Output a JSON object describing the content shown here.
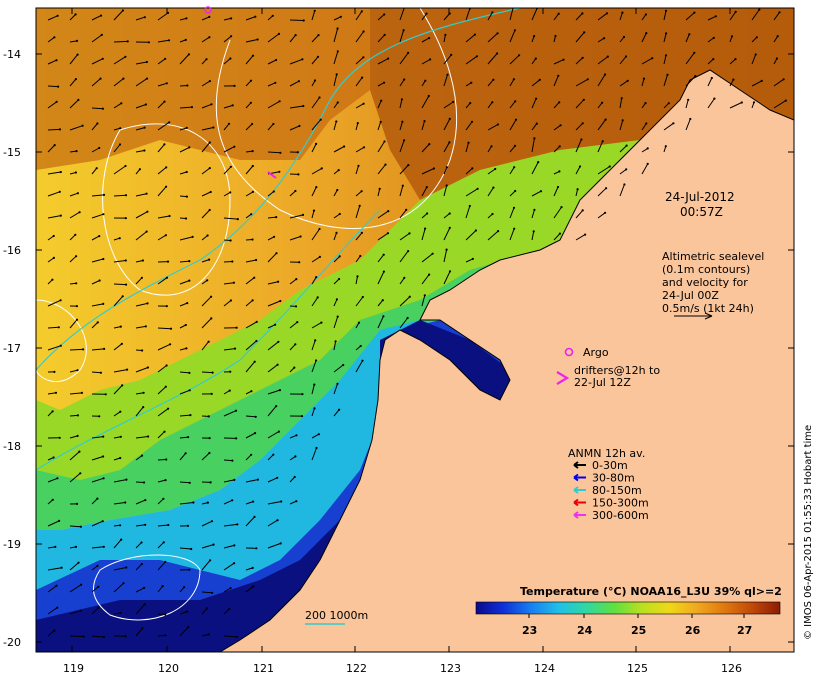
{
  "map": {
    "colors": {
      "land": "#fbc59b",
      "coast": "#000000",
      "contour": "#ffffff",
      "isobath": "#33cccc",
      "frame": "#000000"
    },
    "lon_ticks": [
      "119",
      "120",
      "121",
      "122",
      "123",
      "124",
      "125",
      "126"
    ],
    "lat_ticks": [
      "-14",
      "-15",
      "-16",
      "-17",
      "-18",
      "-19",
      "-20"
    ]
  },
  "annotations": {
    "date": "24-Jul-2012",
    "time": "00:57Z",
    "altimetry": [
      "Altimetric sealevel",
      "(0.1m contours)",
      "and velocity for",
      "24-Jul 00Z",
      "0.5m/s (1kt 24h)"
    ],
    "argo_label": "Argo",
    "drifters_label": [
      "drifters@12h to",
      "22-Jul 12Z"
    ],
    "anmn_title": "ANMN 12h av.",
    "anmn_items": [
      {
        "label": "0-30m",
        "color": "#000000"
      },
      {
        "label": "30-80m",
        "color": "#0000ee"
      },
      {
        "label": "80-150m",
        "color": "#33cccc"
      },
      {
        "label": "150-300m",
        "color": "#ee0000"
      },
      {
        "label": "300-600m",
        "color": "#ee33ee"
      }
    ],
    "isobath_label": "200  1000m",
    "credit": "© IMOS 06-Apr-2015 01:55:33 Hobart time"
  },
  "colorbar": {
    "title": "Temperature (°C) NOAA16_L3U 39% ql>=2",
    "ticks": [
      "23",
      "24",
      "25",
      "26",
      "27"
    ],
    "colors": [
      "#0a0a8c",
      "#1030d8",
      "#1880f0",
      "#20c0e8",
      "#30d8a0",
      "#60e040",
      "#b8e020",
      "#f0d818",
      "#f0a820",
      "#e07810",
      "#c04808",
      "#8c1c04"
    ]
  }
}
